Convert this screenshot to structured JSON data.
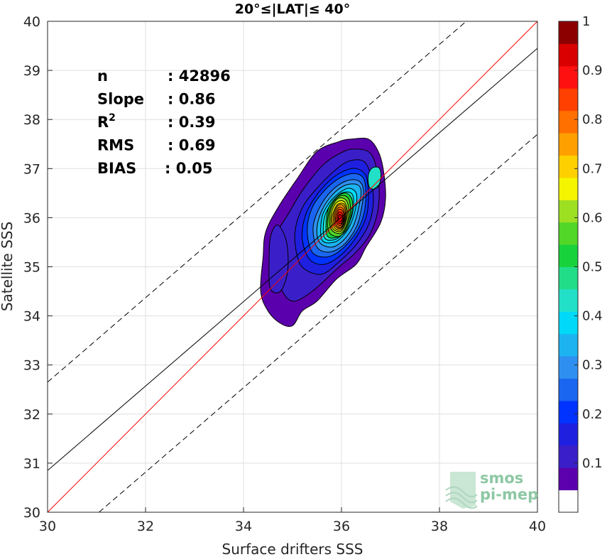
{
  "chart_data": {
    "type": "contour",
    "title": "20°≤|LAT|≤ 40°",
    "xlabel": "Surface drifters SSS",
    "ylabel": "Satellite SSS",
    "xlim": [
      30,
      40
    ],
    "ylim": [
      30,
      40
    ],
    "xticks": [
      "30",
      "32",
      "34",
      "36",
      "38",
      "40"
    ],
    "yticks": [
      "30",
      "31",
      "32",
      "33",
      "34",
      "35",
      "36",
      "37",
      "38",
      "39",
      "40"
    ],
    "grid": true,
    "stats": [
      {
        "label": "n",
        "value": ": 42896"
      },
      {
        "label": "Slope",
        "value": ": 0.86"
      },
      {
        "label": "R",
        "sup": "2",
        "value": ": 0.39"
      },
      {
        "label": "RMS",
        "value": ": 0.69"
      },
      {
        "label": "BIAS",
        "value": ": 0.05"
      }
    ],
    "lines": [
      {
        "role": "one-to-one",
        "color": "#ff0000",
        "dash": false,
        "intercept": 0,
        "slope": 1
      },
      {
        "role": "regression",
        "color": "#000000",
        "dash": false,
        "intercept": 0.865,
        "slope": 0.86
      },
      {
        "role": "upper-bound",
        "color": "#000000",
        "dash": true,
        "intercept": 33.0,
        "slope": 0.86,
        "x0": 30
      },
      {
        "role": "lower-bound",
        "color": "#000000",
        "dash": true,
        "intercept": 30.0,
        "slope": 0.86,
        "x0": 31.05
      }
    ],
    "contours": [
      {
        "level": 0.05,
        "points": [
          [
            34.75,
            33.85
          ],
          [
            35.0,
            33.8
          ],
          [
            35.2,
            34.1
          ],
          [
            35.5,
            34.3
          ],
          [
            35.9,
            34.75
          ],
          [
            36.3,
            35.05
          ],
          [
            36.5,
            35.4
          ],
          [
            36.8,
            35.9
          ],
          [
            36.9,
            36.4
          ],
          [
            36.85,
            37.0
          ],
          [
            36.75,
            37.35
          ],
          [
            36.55,
            37.6
          ],
          [
            36.2,
            37.6
          ],
          [
            35.95,
            37.55
          ],
          [
            35.5,
            37.35
          ],
          [
            35.1,
            36.8
          ],
          [
            34.7,
            36.2
          ],
          [
            34.45,
            35.7
          ],
          [
            34.4,
            35.2
          ],
          [
            34.35,
            34.5
          ],
          [
            34.5,
            34.1
          ]
        ]
      },
      {
        "level": 0.1,
        "points": [
          [
            35.0,
            34.3
          ],
          [
            35.4,
            34.5
          ],
          [
            35.9,
            34.95
          ],
          [
            36.3,
            35.3
          ],
          [
            36.6,
            35.7
          ],
          [
            36.75,
            36.2
          ],
          [
            36.75,
            36.8
          ],
          [
            36.6,
            37.3
          ],
          [
            36.25,
            37.4
          ],
          [
            35.95,
            37.3
          ],
          [
            35.6,
            37.05
          ],
          [
            35.2,
            36.55
          ],
          [
            34.9,
            36.05
          ],
          [
            34.7,
            35.7
          ],
          [
            34.65,
            35.2
          ],
          [
            34.75,
            34.6
          ]
        ]
      },
      {
        "level": 0.1,
        "points": [
          [
            34.55,
            34.55
          ],
          [
            34.75,
            34.5
          ],
          [
            34.9,
            34.9
          ],
          [
            34.88,
            35.5
          ],
          [
            34.7,
            35.85
          ],
          [
            34.55,
            35.6
          ],
          [
            34.52,
            35.0
          ]
        ]
      },
      {
        "level": 0.15,
        "points": [
          [
            35.25,
            34.95
          ],
          [
            35.6,
            34.85
          ],
          [
            35.95,
            35.1
          ],
          [
            36.3,
            35.45
          ],
          [
            36.55,
            35.85
          ],
          [
            36.65,
            36.3
          ],
          [
            36.6,
            36.85
          ],
          [
            36.45,
            37.15
          ],
          [
            36.15,
            37.15
          ],
          [
            35.85,
            36.95
          ],
          [
            35.5,
            36.6
          ],
          [
            35.2,
            36.2
          ],
          [
            35.05,
            35.7
          ],
          [
            35.1,
            35.2
          ]
        ]
      },
      {
        "level": 0.2,
        "points": [
          [
            35.35,
            35.15
          ],
          [
            35.65,
            35.05
          ],
          [
            36.0,
            35.25
          ],
          [
            36.3,
            35.6
          ],
          [
            36.5,
            36.0
          ],
          [
            36.55,
            36.4
          ],
          [
            36.5,
            36.85
          ],
          [
            36.3,
            37.0
          ],
          [
            36.05,
            36.95
          ],
          [
            35.75,
            36.75
          ],
          [
            35.45,
            36.4
          ],
          [
            35.25,
            36.0
          ],
          [
            35.2,
            35.55
          ]
        ]
      },
      {
        "level": 0.25,
        "points": [
          [
            35.4,
            35.3
          ],
          [
            35.7,
            35.2
          ],
          [
            36.0,
            35.35
          ],
          [
            36.3,
            35.7
          ],
          [
            36.45,
            36.05
          ],
          [
            36.5,
            36.45
          ],
          [
            36.45,
            36.8
          ],
          [
            36.25,
            36.9
          ],
          [
            35.95,
            36.8
          ],
          [
            35.65,
            36.55
          ],
          [
            35.4,
            36.2
          ],
          [
            35.3,
            35.75
          ]
        ]
      },
      {
        "level": 0.3,
        "points": [
          [
            35.5,
            35.4
          ],
          [
            35.75,
            35.3
          ],
          [
            36.05,
            35.45
          ],
          [
            36.3,
            35.8
          ],
          [
            36.4,
            36.15
          ],
          [
            36.45,
            36.55
          ],
          [
            36.35,
            36.75
          ],
          [
            36.1,
            36.75
          ],
          [
            35.8,
            36.55
          ],
          [
            35.55,
            36.2
          ],
          [
            35.42,
            35.8
          ]
        ]
      },
      {
        "level": 0.35,
        "points": [
          [
            35.55,
            35.5
          ],
          [
            35.8,
            35.4
          ],
          [
            36.05,
            35.55
          ],
          [
            36.25,
            35.85
          ],
          [
            36.35,
            36.2
          ],
          [
            36.4,
            36.55
          ],
          [
            36.3,
            36.68
          ],
          [
            36.05,
            36.65
          ],
          [
            35.8,
            36.45
          ],
          [
            35.6,
            36.15
          ],
          [
            35.5,
            35.8
          ]
        ]
      },
      {
        "level": 0.4,
        "points": [
          [
            35.6,
            35.55
          ],
          [
            35.85,
            35.5
          ],
          [
            36.05,
            35.65
          ],
          [
            36.2,
            35.9
          ],
          [
            36.3,
            36.25
          ],
          [
            36.3,
            36.5
          ],
          [
            36.15,
            36.6
          ],
          [
            35.95,
            36.5
          ],
          [
            35.75,
            36.3
          ],
          [
            35.6,
            36.0
          ]
        ]
      },
      {
        "level": 0.45,
        "points": [
          [
            35.65,
            35.6
          ],
          [
            35.85,
            35.55
          ],
          [
            36.05,
            35.7
          ],
          [
            36.2,
            36.0
          ],
          [
            36.25,
            36.3
          ],
          [
            36.2,
            36.5
          ],
          [
            36.0,
            36.5
          ],
          [
            35.8,
            36.3
          ],
          [
            35.65,
            36.0
          ]
        ]
      },
      {
        "level": 0.5,
        "points": [
          [
            35.7,
            35.65
          ],
          [
            35.9,
            35.6
          ],
          [
            36.1,
            35.75
          ],
          [
            36.2,
            36.05
          ],
          [
            36.22,
            36.35
          ],
          [
            36.1,
            36.5
          ],
          [
            35.9,
            36.42
          ],
          [
            35.72,
            36.15
          ]
        ]
      },
      {
        "level": 0.55,
        "points": [
          [
            35.75,
            35.7
          ],
          [
            35.95,
            35.62
          ],
          [
            36.1,
            35.8
          ],
          [
            36.18,
            36.1
          ],
          [
            36.15,
            36.38
          ],
          [
            36.0,
            36.45
          ],
          [
            35.82,
            36.3
          ],
          [
            35.72,
            36.0
          ]
        ]
      },
      {
        "level": 0.6,
        "points": [
          [
            35.8,
            35.75
          ],
          [
            35.98,
            35.68
          ],
          [
            36.1,
            35.85
          ],
          [
            36.15,
            36.12
          ],
          [
            36.1,
            36.35
          ],
          [
            35.95,
            36.4
          ],
          [
            35.82,
            36.25
          ],
          [
            35.75,
            36.0
          ]
        ]
      },
      {
        "level": 0.65,
        "points": [
          [
            35.82,
            35.78
          ],
          [
            35.98,
            35.72
          ],
          [
            36.08,
            35.88
          ],
          [
            36.12,
            36.12
          ],
          [
            36.06,
            36.32
          ],
          [
            35.93,
            36.33
          ],
          [
            35.83,
            36.2
          ],
          [
            35.78,
            35.98
          ]
        ]
      },
      {
        "level": 0.7,
        "points": [
          [
            35.85,
            35.8
          ],
          [
            35.98,
            35.75
          ],
          [
            36.07,
            35.9
          ],
          [
            36.1,
            36.12
          ],
          [
            36.05,
            36.28
          ],
          [
            35.93,
            36.28
          ],
          [
            35.85,
            36.15
          ],
          [
            35.8,
            35.98
          ]
        ]
      },
      {
        "level": 0.75,
        "points": [
          [
            35.87,
            35.83
          ],
          [
            35.98,
            35.78
          ],
          [
            36.06,
            35.92
          ],
          [
            36.08,
            36.12
          ],
          [
            36.03,
            36.25
          ],
          [
            35.93,
            36.25
          ],
          [
            35.86,
            36.12
          ],
          [
            35.83,
            35.98
          ]
        ]
      },
      {
        "level": 0.8,
        "points": [
          [
            35.89,
            35.85
          ],
          [
            35.98,
            35.8
          ],
          [
            36.05,
            35.93
          ],
          [
            36.06,
            36.1
          ],
          [
            36.02,
            36.2
          ],
          [
            35.94,
            36.21
          ],
          [
            35.88,
            36.1
          ],
          [
            35.86,
            35.98
          ]
        ]
      },
      {
        "level": 0.85,
        "points": [
          [
            35.91,
            35.88
          ],
          [
            35.98,
            35.84
          ],
          [
            36.04,
            35.95
          ],
          [
            36.05,
            36.08
          ],
          [
            36.0,
            36.16
          ],
          [
            35.94,
            36.16
          ],
          [
            35.9,
            36.07
          ],
          [
            35.88,
            35.98
          ]
        ]
      },
      {
        "level": 0.9,
        "points": [
          [
            35.93,
            35.9
          ],
          [
            35.99,
            35.88
          ],
          [
            36.03,
            35.96
          ],
          [
            36.03,
            36.05
          ],
          [
            35.99,
            36.11
          ],
          [
            35.94,
            36.11
          ],
          [
            35.92,
            36.04
          ],
          [
            35.91,
            35.97
          ]
        ]
      },
      {
        "level": 0.95,
        "points": [
          [
            35.95,
            35.93
          ],
          [
            35.99,
            35.92
          ],
          [
            36.02,
            35.97
          ],
          [
            36.02,
            36.03
          ],
          [
            35.98,
            36.06
          ],
          [
            35.95,
            36.06
          ],
          [
            35.94,
            36.02
          ],
          [
            35.93,
            35.98
          ]
        ]
      },
      {
        "level": 0.65,
        "points": [
          [
            36.62,
            36.72
          ],
          [
            36.7,
            36.7
          ],
          [
            36.74,
            36.82
          ],
          [
            36.7,
            36.92
          ],
          [
            36.62,
            36.88
          ]
        ]
      },
      {
        "level": 0.45,
        "points": [
          [
            36.57,
            36.62
          ],
          [
            36.72,
            36.6
          ],
          [
            36.8,
            36.78
          ],
          [
            36.78,
            37.0
          ],
          [
            36.64,
            37.02
          ],
          [
            36.55,
            36.88
          ]
        ]
      }
    ],
    "colorbar": {
      "min": 0,
      "max": 1,
      "ticks": [
        "0.1",
        "0.2",
        "0.3",
        "0.4",
        "0.5",
        "0.6",
        "0.7",
        "0.8",
        "0.9",
        "1"
      ],
      "colors": [
        "#ffffff",
        "#5b00ad",
        "#3a1fc9",
        "#1f1fe0",
        "#0033ff",
        "#1a66f0",
        "#2f8ff0",
        "#1cb3f0",
        "#00d9f7",
        "#22e0c8",
        "#22dd88",
        "#18d23c",
        "#52d628",
        "#9de022",
        "#f5f500",
        "#ffd000",
        "#ffa000",
        "#ff7000",
        "#ff4000",
        "#ff1010",
        "#d80000",
        "#8c0000"
      ]
    },
    "logo": {
      "line1": "smos",
      "line2": "pi-mep"
    }
  }
}
